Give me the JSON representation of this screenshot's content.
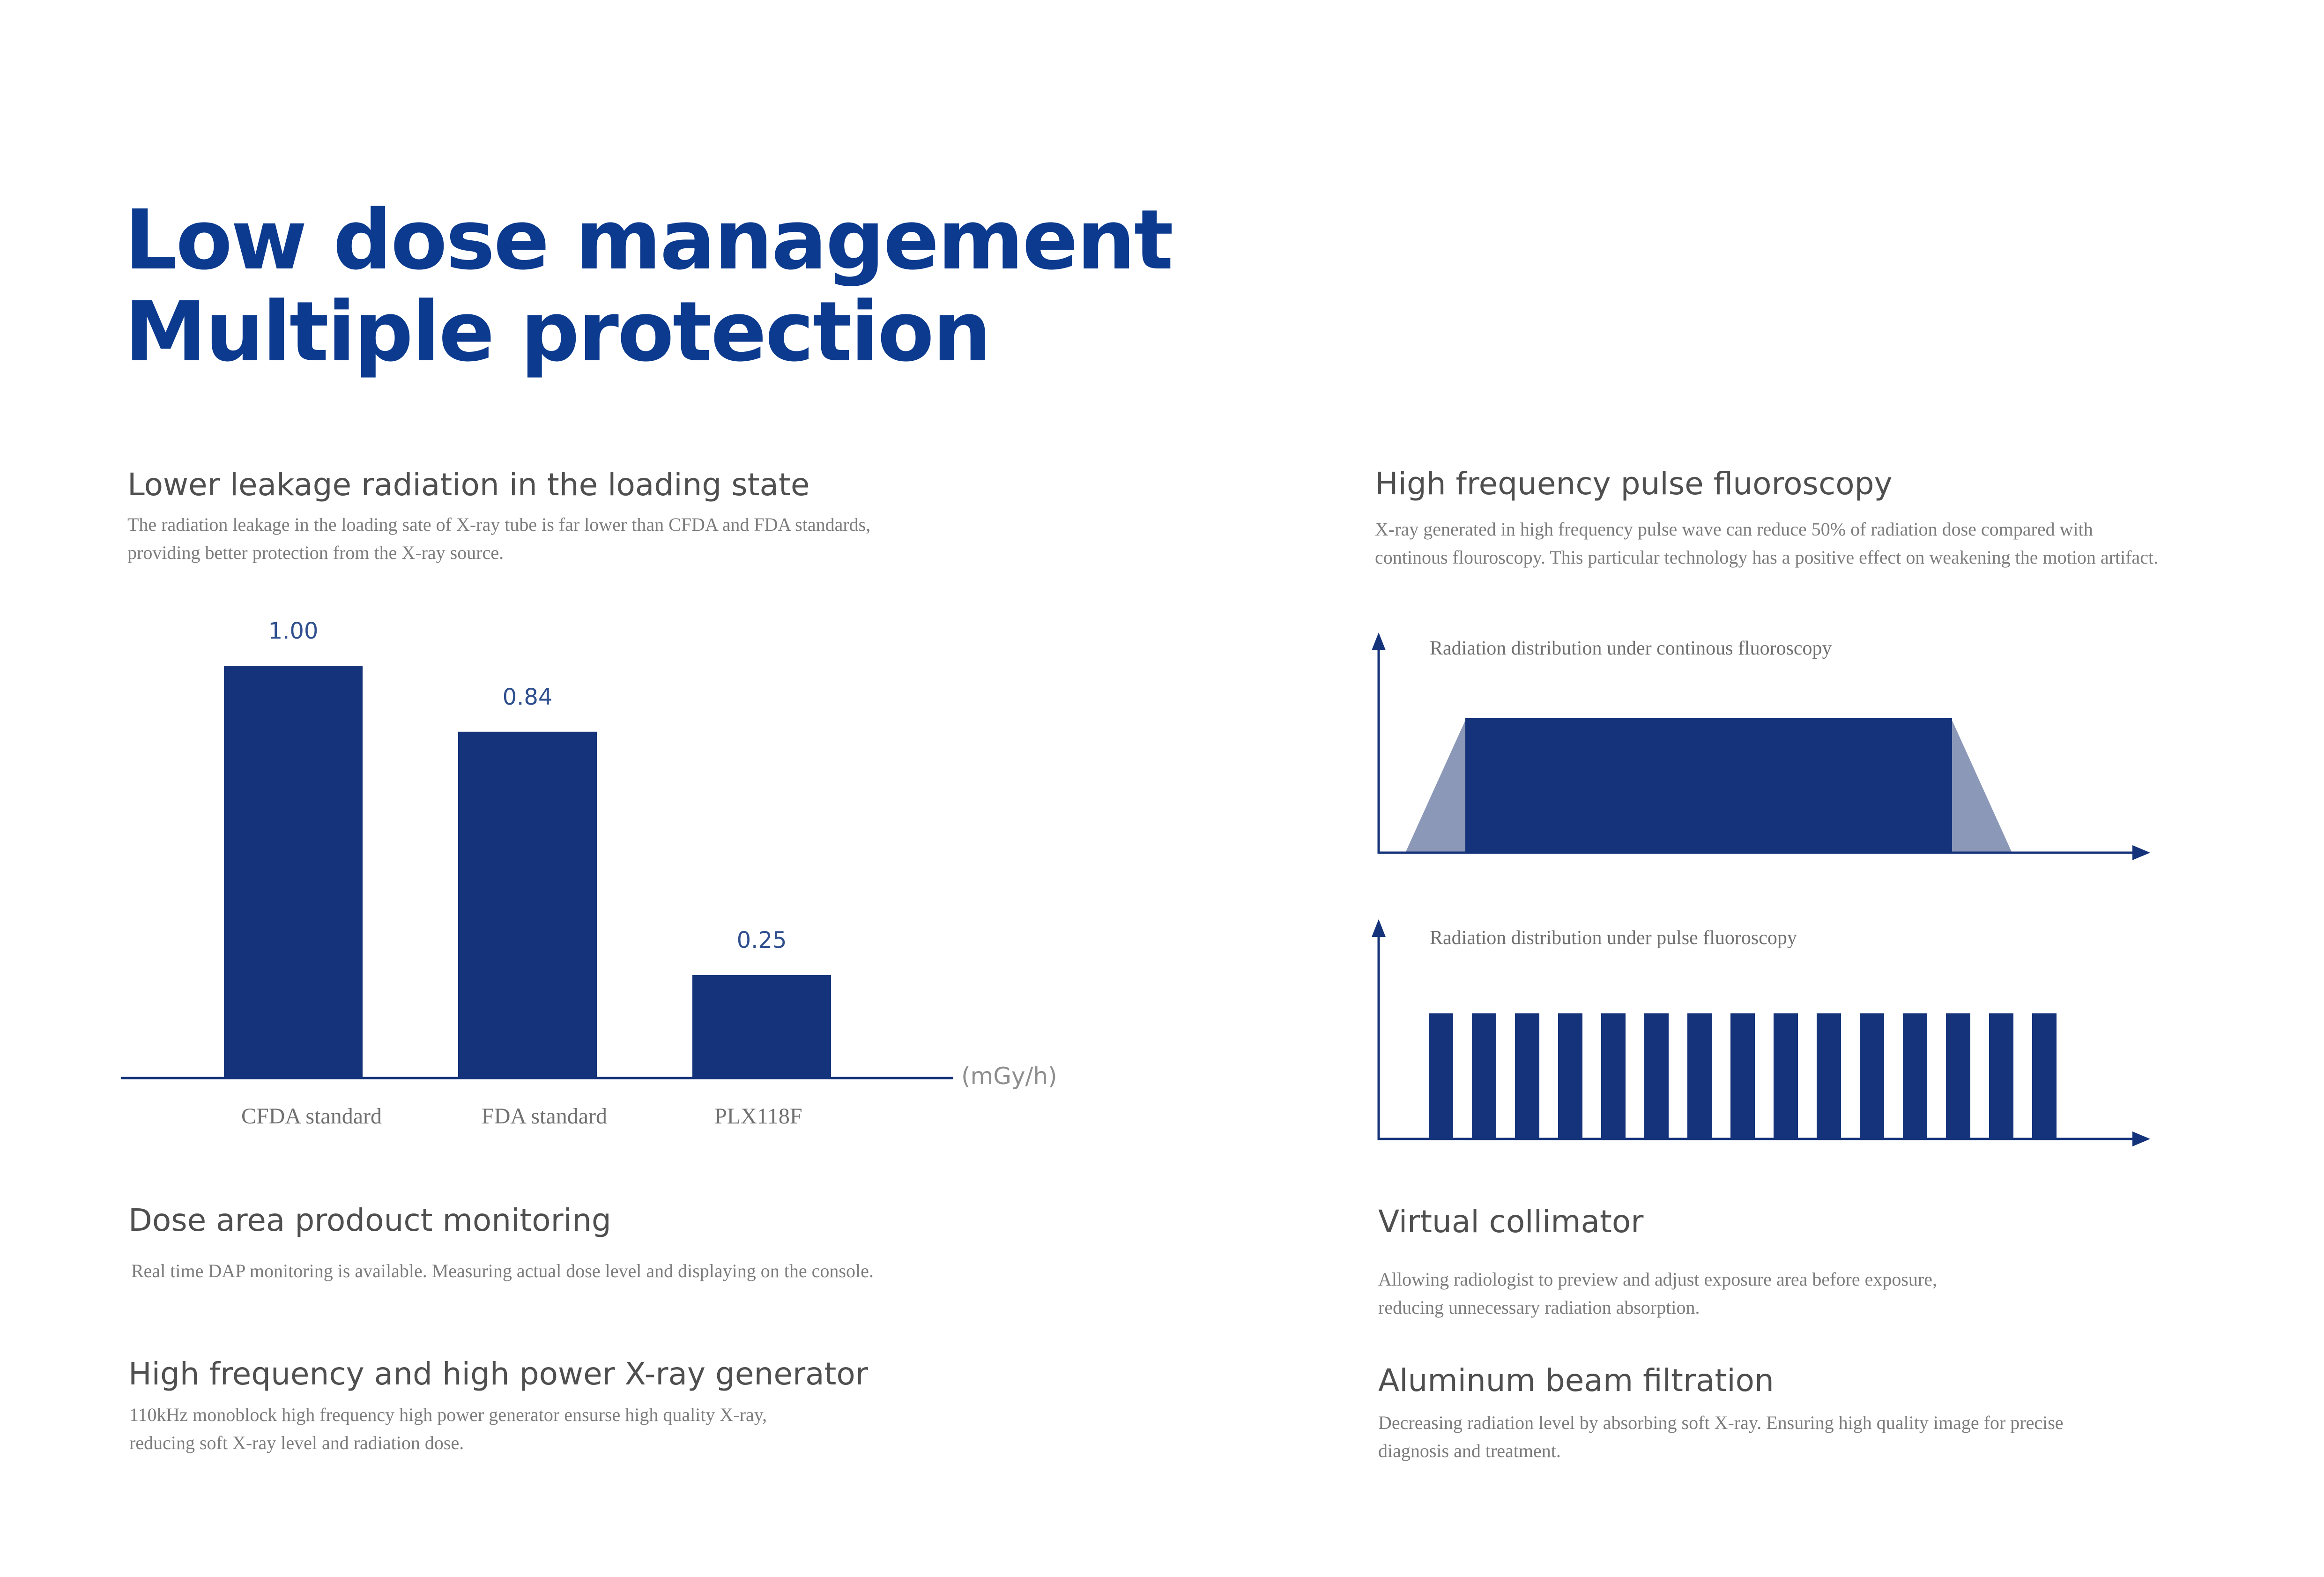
{
  "title": {
    "line1": "Low dose management",
    "line2": "Multiple protection"
  },
  "colors": {
    "brand": "#0b3a8f",
    "bar": "#14337a",
    "trapezoid_edge": "#8b98b8",
    "heading": "#4f4f4f",
    "body_text": "#7c7c7c"
  },
  "sections": {
    "leakage": {
      "heading": "Lower leakage radiation in the loading state",
      "text": [
        "The radiation leakage in the loading sate of X-ray tube is far lower than CFDA and FDA standards,",
        "providing better protection from the X-ray source."
      ]
    },
    "pulse": {
      "heading": "High frequency pulse fluoroscopy",
      "text": [
        "X-ray generated in high frequency pulse wave can reduce 50% of radiation dose compared with",
        "continous flouroscopy. This particular technology has a positive effect on weakening the motion artifact."
      ],
      "continuous_caption": "Radiation distribution under continous fluoroscopy",
      "pulse_caption": "Radiation distribution under pulse fluoroscopy",
      "pulse_count": 15
    },
    "dap": {
      "heading": "Dose area prodouct monitoring",
      "text": [
        "Real time DAP monitoring is available. Measuring actual dose level and displaying on the console."
      ]
    },
    "collimator": {
      "heading": "Virtual collimator",
      "text": [
        "Allowing radiologist to preview and adjust exposure area before exposure,",
        "reducing unnecessary radiation absorption."
      ]
    },
    "generator": {
      "heading": "High frequency and high power X-ray generator",
      "text": [
        "110kHz monoblock high frequency high power generator ensurse high quality X-ray,",
        "reducing soft X-ray level and radiation dose."
      ]
    },
    "filtration": {
      "heading": "Aluminum beam filtration",
      "text": [
        "Decreasing radiation level by absorbing soft X-ray. Ensuring high quality image for precise",
        "diagnosis and treatment."
      ]
    }
  },
  "chart_data": {
    "type": "bar",
    "categories": [
      "CFDA standard",
      "FDA standard",
      "PLX118F"
    ],
    "values": [
      1.0,
      0.84,
      0.25
    ],
    "value_labels": [
      "1.00",
      "0.84",
      "0.25"
    ],
    "unit": "(mGy/h)",
    "title": "",
    "xlabel": "",
    "ylabel": "",
    "ylim": [
      0,
      1.0
    ]
  }
}
